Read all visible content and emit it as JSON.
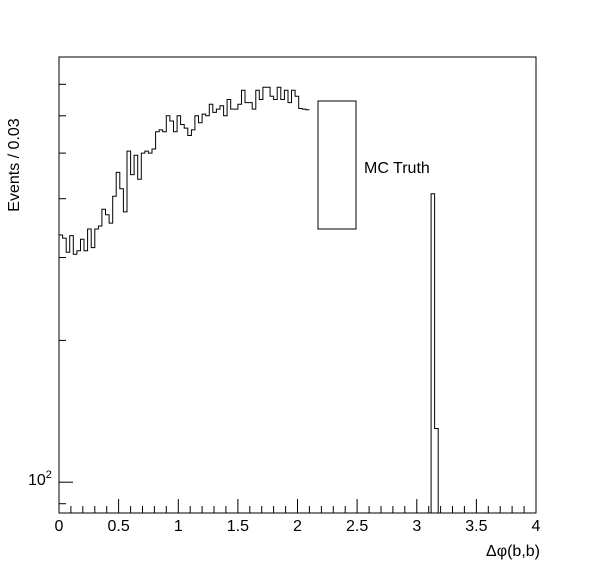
{
  "chart_data": {
    "type": "histogram",
    "xlabel": "Δφ(b,b)",
    "ylabel": "Events / 0.03",
    "xlim": [
      0,
      4
    ],
    "ylim_log": [
      86,
      800
    ],
    "log_y": true,
    "bin_width": 0.03,
    "x_ticks": [
      "0",
      "0.5",
      "1",
      "1.5",
      "2",
      "2.5",
      "3",
      "3.5",
      "4"
    ],
    "y_tick_label": "10",
    "y_tick_exponent": "2",
    "legend": {
      "label": "MC Truth",
      "position": "upper-right"
    },
    "bins_start": 0.0,
    "values": [
      335,
      330,
      308,
      334,
      305,
      310,
      328,
      310,
      345,
      315,
      345,
      350,
      380,
      370,
      355,
      405,
      455,
      420,
      375,
      505,
      450,
      495,
      440,
      500,
      505,
      500,
      510,
      555,
      560,
      555,
      600,
      585,
      555,
      600,
      575,
      565,
      545,
      560,
      600,
      580,
      605,
      600,
      635,
      610,
      620,
      630,
      600,
      650,
      620,
      620,
      635,
      680,
      640,
      640,
      620,
      680,
      650,
      690,
      690,
      660,
      650,
      690,
      650,
      680,
      640,
      680,
      660,
      622,
      620,
      618
    ],
    "spike_bins": [
      {
        "x_low": 3.12,
        "x_high": 3.15,
        "value": 410
      },
      {
        "x_low": 3.15,
        "x_high": 3.18,
        "value": 130
      }
    ]
  }
}
